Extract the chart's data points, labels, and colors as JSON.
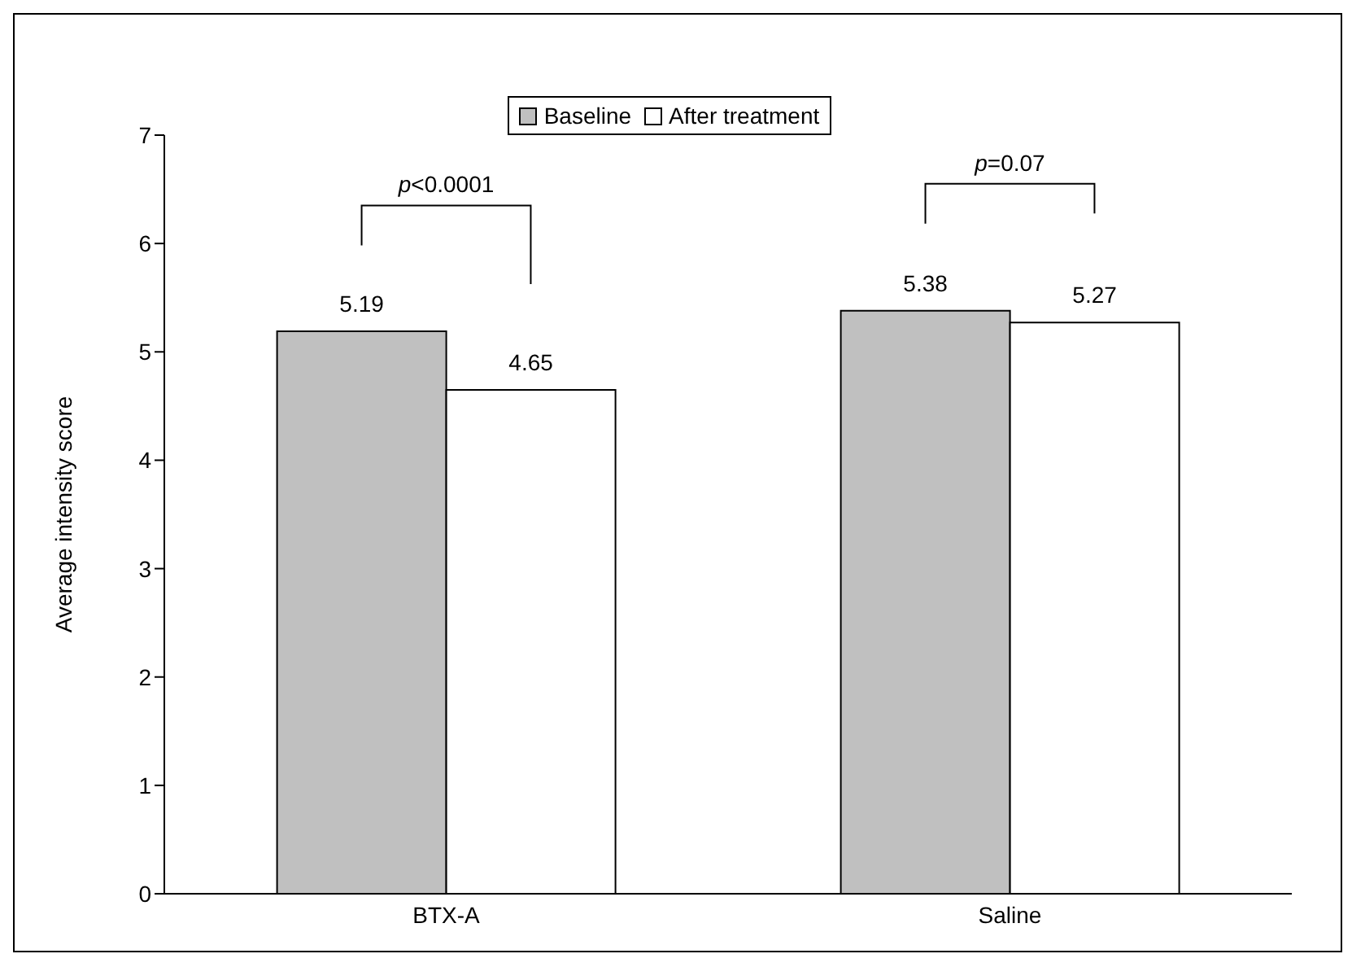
{
  "chart_data": {
    "type": "bar",
    "ylabel": "Average intensity score",
    "categories": [
      "BTX-A",
      "Saline"
    ],
    "series": [
      {
        "name": "Baseline",
        "color": "#c0c0c0",
        "values": [
          5.19,
          5.38
        ]
      },
      {
        "name": "After treatment",
        "color": "#ffffff",
        "values": [
          4.65,
          5.27
        ]
      }
    ],
    "ylim": [
      0,
      7
    ],
    "yticks": [
      0,
      1,
      2,
      3,
      4,
      5,
      6,
      7
    ],
    "grid": false,
    "legend": "top",
    "data_labels": true,
    "annotations": [
      "p<0.0001",
      "p=0.07"
    ]
  }
}
